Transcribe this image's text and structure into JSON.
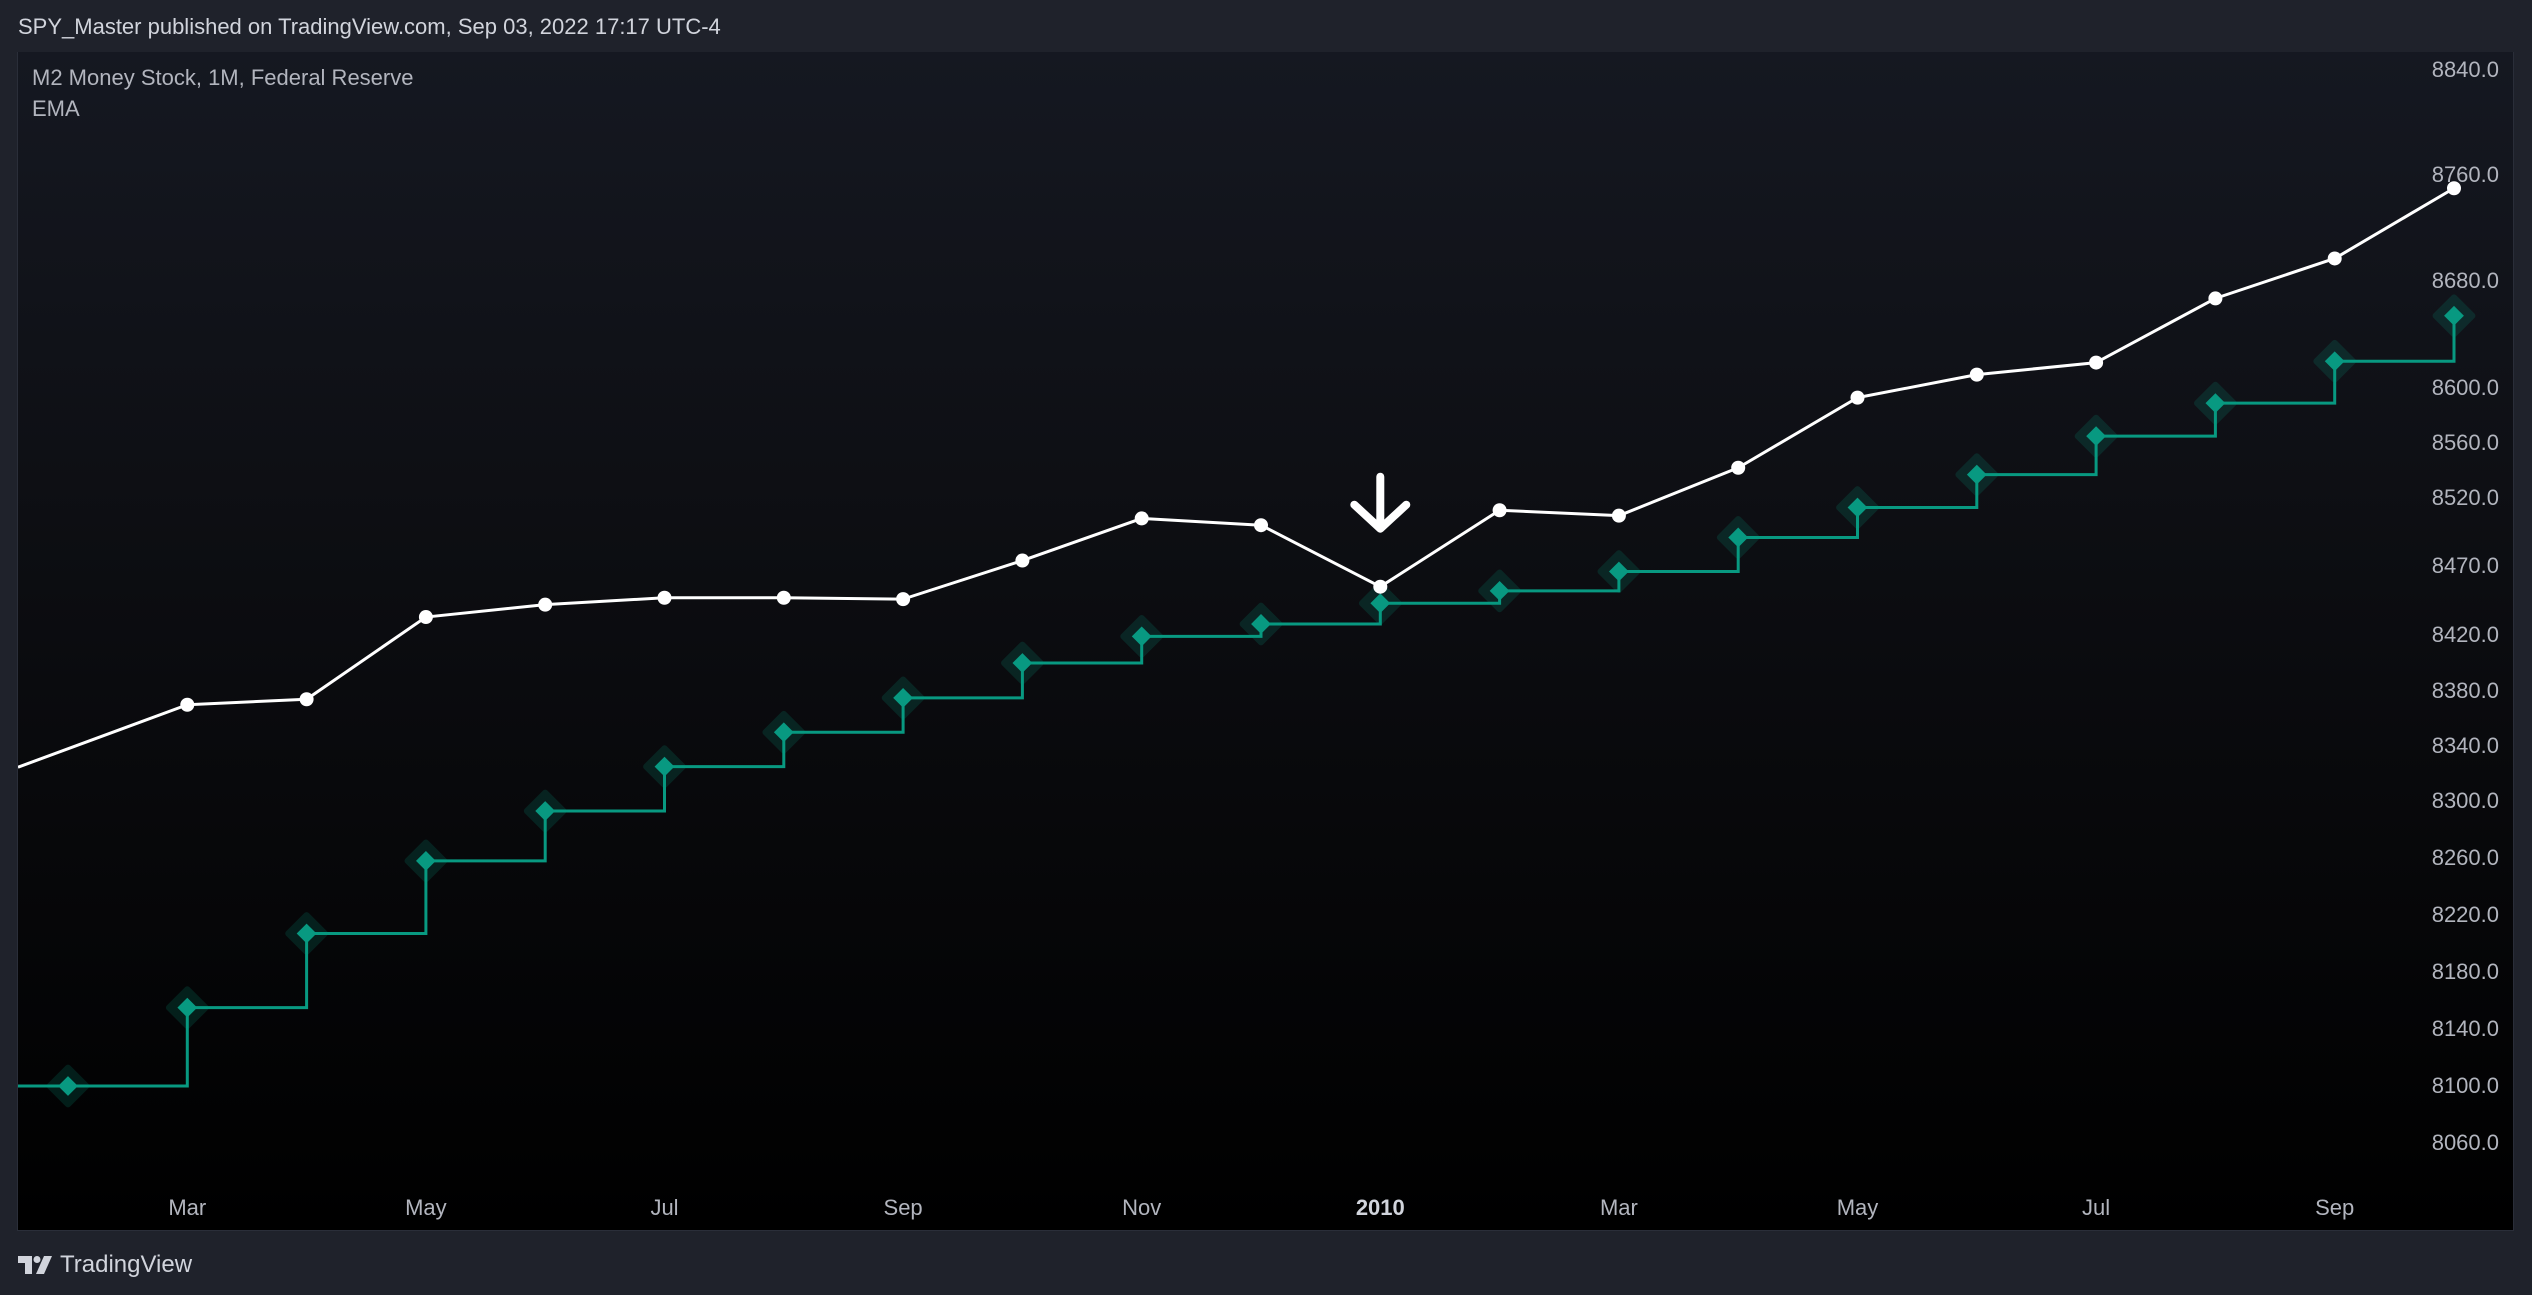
{
  "header": {
    "text": "SPY_Master published on TradingView.com, Sep 03, 2022 17:17 UTC-4"
  },
  "legend": {
    "symbol": "M2 Money Stock, 1M, Federal Reserve",
    "indicator": "EMA"
  },
  "footer": {
    "brand": "TradingView"
  },
  "colors": {
    "price_line": "#ffffff",
    "ema_line": "#089981",
    "axis_text": "#b2b5be",
    "background": "#1f222b"
  },
  "chart_data": {
    "type": "line",
    "title": "M2 Money Stock, 1M, Federal Reserve",
    "x": [
      "2009-02",
      "2009-03",
      "2009-04",
      "2009-05",
      "2009-06",
      "2009-07",
      "2009-08",
      "2009-09",
      "2009-10",
      "2009-11",
      "2009-12",
      "2010-01",
      "2010-02",
      "2010-03",
      "2010-04",
      "2010-05",
      "2010-06",
      "2010-07",
      "2010-08",
      "2010-09",
      "2010-10"
    ],
    "x_tick_labels": [
      "Mar",
      "May",
      "Jul",
      "Sep",
      "Nov",
      "2010",
      "Mar",
      "May",
      "Jul",
      "Sep"
    ],
    "x_tick_months": [
      "2009-03",
      "2009-05",
      "2009-07",
      "2009-09",
      "2009-11",
      "2010-01",
      "2010-03",
      "2010-05",
      "2010-07",
      "2010-09"
    ],
    "y_tick_labels": [
      "8840.0",
      "8760.0",
      "8680.0",
      "8600.0",
      "8560.0",
      "8520.0",
      "8470.0",
      "8420.0",
      "8380.0",
      "8340.0",
      "8300.0",
      "8260.0",
      "8220.0",
      "8180.0",
      "8140.0",
      "8100.0",
      "8060.0"
    ],
    "series": [
      {
        "name": "",
        "style": "line-with-dots",
        "values": [
          8338,
          8370,
          8374,
          8433,
          8442,
          8447,
          8447,
          8446,
          8474,
          8505,
          8500,
          8455,
          8511,
          8507,
          8542,
          8593,
          8610,
          8619,
          8667,
          8697,
          8750
        ]
      },
      {
        "name": "EMA",
        "style": "step-with-diamonds",
        "values": [
          8100,
          8155,
          8207,
          8258,
          8293,
          8325,
          8350,
          8375,
          8400,
          8419,
          8428,
          8443,
          8452,
          8466,
          8491,
          8513,
          8537,
          8565,
          8589,
          8620,
          8654
        ]
      }
    ],
    "annotations": [
      {
        "type": "arrow-down",
        "x": "2010-01"
      }
    ],
    "grid": false,
    "legend_position": "top-left"
  }
}
